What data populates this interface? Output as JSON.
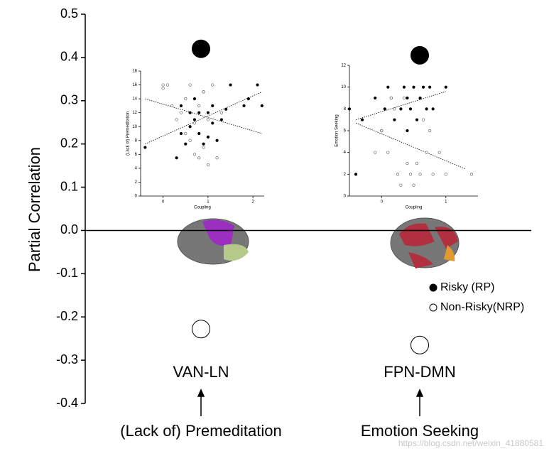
{
  "chart_data": [
    {
      "type": "dot",
      "ylabel": "Partial Correlation",
      "categories": [
        "VAN-LN",
        "FPN-DMN"
      ],
      "annotations": [
        "(Lack of) Premeditation",
        "Emotion Seeking"
      ],
      "series": [
        {
          "name": "Risky (RP)",
          "color": "#000000",
          "filled": true,
          "values": [
            0.42,
            0.405
          ]
        },
        {
          "name": "Non-Risky(NRP)",
          "color": "#000000",
          "filled": false,
          "values": [
            -0.228,
            -0.265
          ]
        }
      ],
      "ylim": [
        -0.4,
        0.5
      ],
      "yticks": [
        -0.4,
        -0.3,
        -0.2,
        -0.1,
        {
          "value": 0,
          "label": "0.0"
        },
        0.1,
        0.2,
        0.3,
        0.4,
        0.5
      ],
      "zero_line": true,
      "legend": "right"
    },
    {
      "type": "scatter",
      "xlabel": "Coupling",
      "ylabel": "(Lack of) Premeditation",
      "xlim": [
        -0.5,
        2.25
      ],
      "ylim": [
        0,
        18
      ],
      "xticks": [
        0,
        1,
        2
      ],
      "yticks": [
        0,
        2,
        4,
        6,
        8,
        10,
        12,
        14,
        16,
        18
      ],
      "series": [
        {
          "filled": true,
          "x": [
            -0.4,
            0.3,
            0.4,
            0.4,
            0.5,
            0.6,
            0.6,
            0.7,
            0.7,
            0.8,
            0.8,
            0.9,
            0.9,
            1,
            1,
            1.1,
            1.1,
            1.2,
            1.3,
            1.4,
            1.5,
            1.8,
            1.9,
            2.1,
            2.2
          ],
          "values": [
            7,
            5.5,
            9,
            13,
            7.5,
            10,
            12,
            11,
            14,
            9,
            12,
            15,
            7.5,
            8.5,
            12,
            10.5,
            13,
            8,
            11,
            12.5,
            16,
            13,
            14,
            16,
            13
          ],
          "trend": {
            "x": [
              -0.4,
              2.2
            ],
            "y": [
              7.5,
              15
            ]
          }
        },
        {
          "filled": false,
          "x": [
            0,
            0,
            0.1,
            0.2,
            0.3,
            0.4,
            0.5,
            0.5,
            0.6,
            0.6,
            0.7,
            0.7,
            0.8,
            0.8,
            0.9,
            0.9,
            1,
            1,
            1.1,
            1.2,
            1.3
          ],
          "values": [
            16,
            15.5,
            16,
            13,
            11,
            12,
            9,
            14,
            8,
            16,
            10.5,
            6,
            13,
            5.5,
            7,
            15,
            4.5,
            11,
            16,
            5.5,
            12
          ],
          "trend": {
            "x": [
              -0.4,
              2.2
            ],
            "y": [
              14,
              9
            ]
          }
        }
      ]
    },
    {
      "type": "scatter",
      "xlabel": "Coupling",
      "ylabel": "Emotion Seeking",
      "xlim": [
        -0.5,
        1.5
      ],
      "ylim": [
        0,
        12
      ],
      "xticks": [
        0,
        1
      ],
      "yticks": [
        0,
        2,
        4,
        6,
        8,
        10,
        12
      ],
      "series": [
        {
          "filled": true,
          "x": [
            -0.4,
            -0.5,
            -0.3,
            -0.1,
            0,
            0.05,
            0.1,
            0.15,
            0.2,
            0.3,
            0.35,
            0.4,
            0.4,
            0.45,
            0.5,
            0.55,
            0.6,
            0.65,
            0.7,
            0.75,
            0.8,
            1
          ],
          "values": [
            2,
            8,
            7,
            9,
            6,
            8,
            10,
            9,
            7,
            8,
            10,
            9,
            6,
            8,
            10,
            7,
            9,
            10,
            8,
            10,
            8,
            10
          ],
          "trend": {
            "x": [
              -0.4,
              1
            ],
            "y": [
              7,
              9.6
            ]
          }
        },
        {
          "filled": false,
          "x": [
            -0.1,
            0,
            0.1,
            0.15,
            0.2,
            0.25,
            0.3,
            0.35,
            0.4,
            0.45,
            0.5,
            0.55,
            0.6,
            0.65,
            0.7,
            0.75,
            0.8,
            0.9,
            1,
            1.4
          ],
          "values": [
            4,
            6,
            4,
            9,
            8,
            2,
            1,
            9,
            3,
            2,
            1,
            3,
            2,
            7,
            4,
            6,
            2,
            4,
            2,
            2
          ],
          "trend": {
            "x": [
              -0.4,
              1.3
            ],
            "y": [
              6.7,
              2.5
            ]
          }
        }
      ]
    }
  ],
  "watermark": "https://blog.csdn.net/weixin_41880581"
}
